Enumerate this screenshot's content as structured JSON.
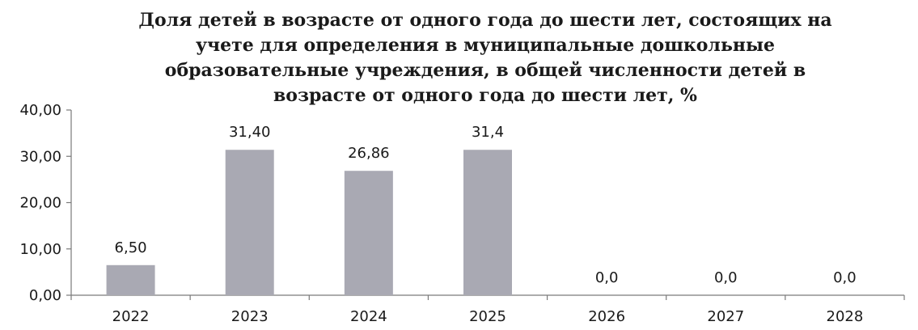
{
  "chart_data": {
    "type": "bar",
    "title": "Доля детей в возрасте от одного года до шести лет, состоящих на учете для определения в муниципальные дошкольные образовательные учреждения, в общей численности детей в возрасте от одного года до шести лет, %",
    "categories": [
      "2022",
      "2023",
      "2024",
      "2025",
      "2026",
      "2027",
      "2028"
    ],
    "values": [
      6.5,
      31.4,
      26.86,
      31.4,
      0.0,
      0.0,
      0.0
    ],
    "data_labels": [
      "6,50",
      "31,40",
      "26,86",
      "31,4",
      "0,0",
      "0,0",
      "0,0"
    ],
    "y_ticks": [
      "0,00",
      "10,00",
      "20,00",
      "30,00",
      "40,00"
    ],
    "ylim": [
      0,
      40
    ],
    "xlabel": "",
    "ylabel": "",
    "grid": false,
    "legend": "none",
    "bar_color": "#a9a9b3"
  }
}
